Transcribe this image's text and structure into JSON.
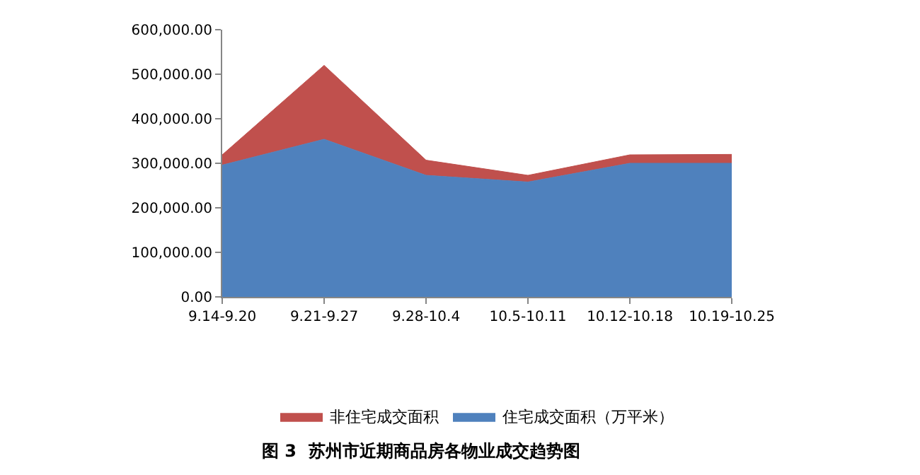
{
  "chart_data": {
    "type": "area",
    "title": "图 3  苏州市近期商品房各物业成交趋势图",
    "categories": [
      "9.14-9.20",
      "9.21-9.27",
      "9.28-10.4",
      "10.5-10.11",
      "10.12-10.18",
      "10.19-10.25"
    ],
    "stacked": true,
    "series": [
      {
        "name": "住宅成交面积（万平米）",
        "color": "#4f81bd",
        "values": [
          296000,
          354000,
          273000,
          258000,
          300000,
          300000
        ]
      },
      {
        "name": "非住宅成交面积",
        "color": "#c0504d",
        "values": [
          23000,
          166000,
          34000,
          15000,
          19000,
          20000
        ]
      }
    ],
    "ylim": [
      0,
      600000
    ],
    "yticks": [
      {
        "value": 0,
        "label": "0.00"
      },
      {
        "value": 100000,
        "label": "100,000.00"
      },
      {
        "value": 200000,
        "label": "200,000.00"
      },
      {
        "value": 300000,
        "label": "300,000.00"
      },
      {
        "value": 400000,
        "label": "400,000.00"
      },
      {
        "value": 500000,
        "label": "500,000.00"
      },
      {
        "value": 600000,
        "label": "600,000.00"
      }
    ],
    "legend": "bottom"
  }
}
